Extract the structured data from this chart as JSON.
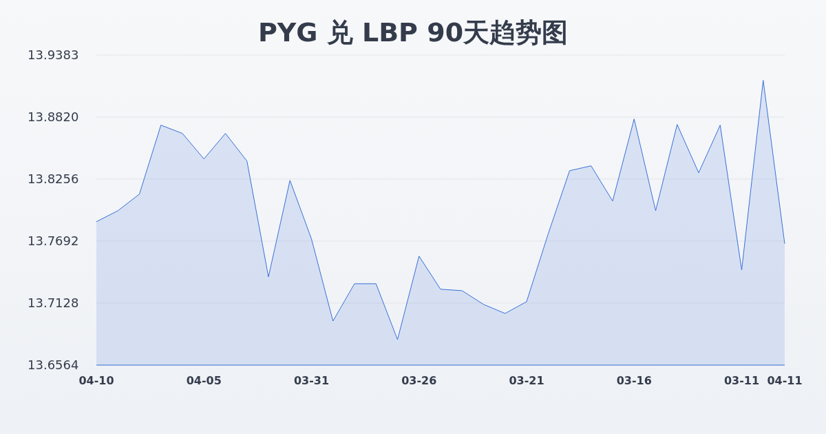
{
  "chart_data": {
    "type": "area",
    "title": "PYG 兑 LBP 90天趋势图",
    "categories": [
      "04-10",
      null,
      null,
      null,
      null,
      "04-05",
      null,
      null,
      null,
      null,
      "03-31",
      null,
      null,
      null,
      null,
      "03-26",
      null,
      null,
      null,
      null,
      "03-21",
      null,
      null,
      null,
      null,
      "03-16",
      null,
      null,
      null,
      null,
      "03-11",
      null,
      "04-11"
    ],
    "values": [
      13.7868,
      13.7968,
      13.8119,
      13.8746,
      13.8671,
      13.8439,
      13.8671,
      13.842,
      13.7367,
      13.8244,
      13.7711,
      13.6965,
      13.7304,
      13.7304,
      13.6796,
      13.7555,
      13.7254,
      13.7241,
      13.7116,
      13.7034,
      13.7141,
      13.7755,
      13.8332,
      13.8376,
      13.8056,
      13.8802,
      13.7968,
      13.8752,
      13.8313,
      13.8746,
      13.7429,
      13.9154,
      13.7668
    ],
    "color": "#3a6fd8",
    "ylim": [
      13.6564,
      13.9383
    ],
    "yticks": [
      13.6564,
      13.7128,
      13.7692,
      13.8256,
      {
        "value": 13.882,
        "label": "13.8820"
      },
      13.9383
    ],
    "grid": "y"
  }
}
